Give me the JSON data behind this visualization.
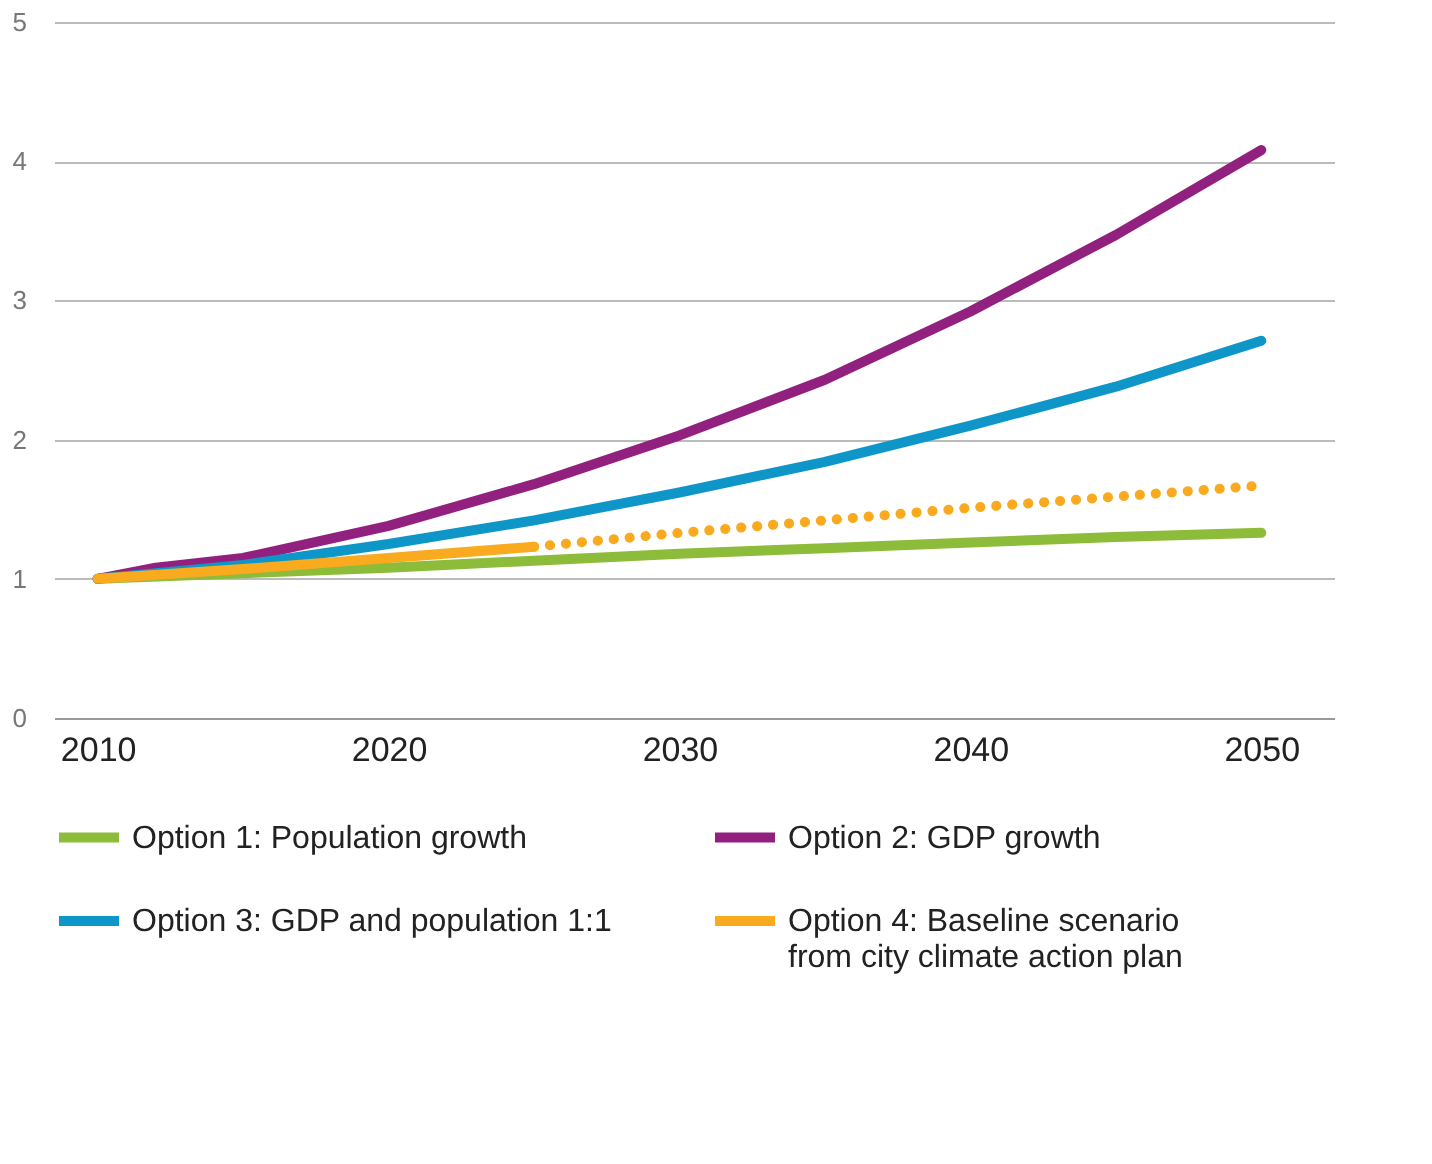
{
  "chart_data": {
    "type": "line",
    "xlim": [
      2008.5,
      2052.5
    ],
    "xticks": [
      2010,
      2020,
      2030,
      2040,
      2050
    ],
    "ylim": [
      0,
      5
    ],
    "yticks": [
      0,
      1,
      2,
      3,
      4,
      5
    ],
    "grid": "y",
    "legend": "bottom",
    "line_style": "solid",
    "marker": "none",
    "x": [
      2010,
      2015,
      2020,
      2025,
      2030,
      2035,
      2040,
      2045,
      2050
    ],
    "series": [
      {
        "name": "Option 1: Population growth",
        "color": "#8dbb3a",
        "values": [
          1,
          1.04,
          1.08,
          1.13,
          1.18,
          1.22,
          1.26,
          1.3,
          1.33
        ]
      },
      {
        "name": "Option 2: GDP growth",
        "color": "#92207e",
        "x": [
          2010,
          2012,
          2015,
          2020,
          2025,
          2030,
          2035,
          2040,
          2045,
          2050
        ],
        "values": [
          1,
          1.08,
          1.15,
          1.38,
          1.68,
          2.03,
          2.43,
          2.92,
          3.47,
          4.08
        ]
      },
      {
        "name": "Option 3: GDP and population 1:1",
        "color": "#0f96c8",
        "values": [
          1,
          1.1,
          1.25,
          1.42,
          1.62,
          1.84,
          2.1,
          2.38,
          2.71
        ]
      },
      {
        "name": "Option 4: Baseline scenario from city climate action plan",
        "color": "#f9aa1e",
        "x": [
          2010,
          2015,
          2020,
          2025
        ],
        "values": [
          1,
          1.07,
          1.15,
          1.23
        ]
      },
      {
        "color": "#f9aa1e",
        "line_style": "dotted",
        "x": [
          2025,
          2030,
          2035,
          2040,
          2045,
          2050
        ],
        "values": [
          1.23,
          1.33,
          1.42,
          1.51,
          1.59,
          1.67
        ]
      }
    ]
  }
}
